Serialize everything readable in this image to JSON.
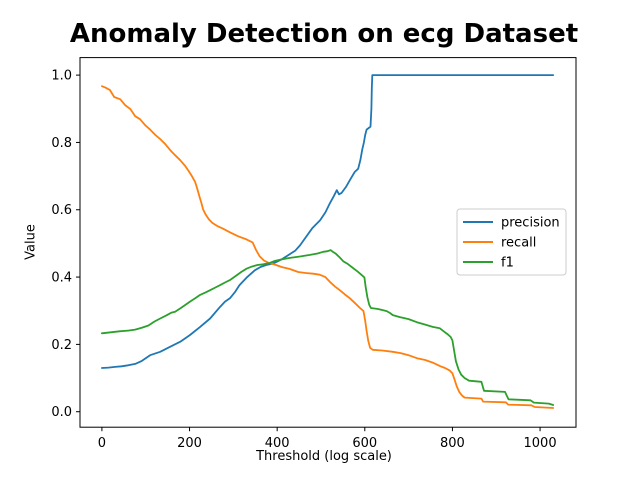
{
  "chart_data": {
    "type": "line",
    "title": "Anomaly Detection on ecg Dataset",
    "xlabel": "Threshold (log scale)",
    "ylabel": "Value",
    "xlim": [
      -50,
      1082
    ],
    "ylim": [
      -0.046,
      1.052
    ],
    "grid": false,
    "background_color": "#ffffff",
    "spine_color": "#000000",
    "xticks": {
      "values": [
        0,
        200,
        400,
        600,
        800,
        1000
      ],
      "labels": [
        "0",
        "200",
        "400",
        "600",
        "800",
        "1000"
      ]
    },
    "yticks": {
      "values": [
        0.0,
        0.2,
        0.4,
        0.6,
        0.8,
        1.0
      ],
      "labels": [
        "0.0",
        "0.2",
        "0.4",
        "0.6",
        "0.8",
        "1.0"
      ]
    },
    "legend": {
      "position": "center-right",
      "border_color": "#cccccc",
      "entries": [
        {
          "label": "precision",
          "color": "#1f77b4"
        },
        {
          "label": "recall",
          "color": "#ff7f0e"
        },
        {
          "label": "f1",
          "color": "#2ca02c"
        }
      ]
    },
    "series": [
      {
        "name": "precision",
        "color": "#1f77b4",
        "points": [
          [
            0,
            0.13
          ],
          [
            15,
            0.131
          ],
          [
            30,
            0.133
          ],
          [
            45,
            0.135
          ],
          [
            60,
            0.138
          ],
          [
            76,
            0.142
          ],
          [
            90,
            0.15
          ],
          [
            110,
            0.168
          ],
          [
            133,
            0.178
          ],
          [
            156,
            0.193
          ],
          [
            179,
            0.208
          ],
          [
            201,
            0.228
          ],
          [
            224,
            0.252
          ],
          [
            247,
            0.277
          ],
          [
            270,
            0.312
          ],
          [
            281,
            0.327
          ],
          [
            292,
            0.337
          ],
          [
            304,
            0.356
          ],
          [
            314,
            0.376
          ],
          [
            330,
            0.398
          ],
          [
            349,
            0.42
          ],
          [
            362,
            0.43
          ],
          [
            375,
            0.436
          ],
          [
            390,
            0.44
          ],
          [
            400,
            0.446
          ],
          [
            412,
            0.454
          ],
          [
            425,
            0.465
          ],
          [
            441,
            0.478
          ],
          [
            452,
            0.494
          ],
          [
            465,
            0.518
          ],
          [
            480,
            0.545
          ],
          [
            498,
            0.569
          ],
          [
            510,
            0.592
          ],
          [
            520,
            0.619
          ],
          [
            529,
            0.64
          ],
          [
            536,
            0.658
          ],
          [
            541,
            0.646
          ],
          [
            547,
            0.65
          ],
          [
            557,
            0.668
          ],
          [
            566,
            0.688
          ],
          [
            577,
            0.712
          ],
          [
            585,
            0.722
          ],
          [
            590,
            0.748
          ],
          [
            594,
            0.778
          ],
          [
            598,
            0.8
          ],
          [
            601,
            0.822
          ],
          [
            604,
            0.838
          ],
          [
            613,
            0.847
          ],
          [
            615,
            0.9
          ],
          [
            616,
            0.96
          ],
          [
            617,
            1.0
          ],
          [
            1030,
            1.0
          ]
        ]
      },
      {
        "name": "recall",
        "color": "#ff7f0e",
        "points": [
          [
            0,
            0.967
          ],
          [
            8,
            0.963
          ],
          [
            18,
            0.956
          ],
          [
            28,
            0.935
          ],
          [
            42,
            0.928
          ],
          [
            53,
            0.911
          ],
          [
            65,
            0.899
          ],
          [
            76,
            0.878
          ],
          [
            87,
            0.869
          ],
          [
            99,
            0.851
          ],
          [
            110,
            0.838
          ],
          [
            122,
            0.822
          ],
          [
            133,
            0.81
          ],
          [
            144,
            0.796
          ],
          [
            156,
            0.777
          ],
          [
            167,
            0.762
          ],
          [
            179,
            0.747
          ],
          [
            190,
            0.73
          ],
          [
            197,
            0.717
          ],
          [
            205,
            0.701
          ],
          [
            213,
            0.682
          ],
          [
            218,
            0.661
          ],
          [
            222,
            0.642
          ],
          [
            227,
            0.62
          ],
          [
            231,
            0.601
          ],
          [
            237,
            0.585
          ],
          [
            244,
            0.572
          ],
          [
            252,
            0.561
          ],
          [
            263,
            0.552
          ],
          [
            276,
            0.544
          ],
          [
            292,
            0.533
          ],
          [
            311,
            0.521
          ],
          [
            330,
            0.512
          ],
          [
            344,
            0.503
          ],
          [
            352,
            0.48
          ],
          [
            360,
            0.462
          ],
          [
            370,
            0.449
          ],
          [
            381,
            0.442
          ],
          [
            395,
            0.437
          ],
          [
            410,
            0.43
          ],
          [
            429,
            0.424
          ],
          [
            448,
            0.415
          ],
          [
            465,
            0.412
          ],
          [
            482,
            0.41
          ],
          [
            497,
            0.407
          ],
          [
            510,
            0.4
          ],
          [
            520,
            0.386
          ],
          [
            531,
            0.373
          ],
          [
            543,
            0.361
          ],
          [
            555,
            0.348
          ],
          [
            566,
            0.337
          ],
          [
            578,
            0.322
          ],
          [
            589,
            0.308
          ],
          [
            597,
            0.299
          ],
          [
            601,
            0.27
          ],
          [
            604,
            0.24
          ],
          [
            608,
            0.21
          ],
          [
            612,
            0.19
          ],
          [
            618,
            0.184
          ],
          [
            640,
            0.182
          ],
          [
            664,
            0.178
          ],
          [
            682,
            0.174
          ],
          [
            700,
            0.168
          ],
          [
            719,
            0.159
          ],
          [
            737,
            0.154
          ],
          [
            755,
            0.146
          ],
          [
            771,
            0.136
          ],
          [
            783,
            0.13
          ],
          [
            794,
            0.122
          ],
          [
            800,
            0.114
          ],
          [
            805,
            0.095
          ],
          [
            810,
            0.075
          ],
          [
            816,
            0.058
          ],
          [
            822,
            0.048
          ],
          [
            828,
            0.042
          ],
          [
            866,
            0.039
          ],
          [
            870,
            0.03
          ],
          [
            922,
            0.028
          ],
          [
            927,
            0.021
          ],
          [
            980,
            0.019
          ],
          [
            988,
            0.014
          ],
          [
            1030,
            0.011
          ]
        ]
      },
      {
        "name": "f1",
        "color": "#2ca02c",
        "points": [
          [
            0,
            0.233
          ],
          [
            20,
            0.236
          ],
          [
            40,
            0.239
          ],
          [
            60,
            0.241
          ],
          [
            76,
            0.244
          ],
          [
            92,
            0.25
          ],
          [
            106,
            0.256
          ],
          [
            120,
            0.268
          ],
          [
            133,
            0.277
          ],
          [
            147,
            0.286
          ],
          [
            158,
            0.294
          ],
          [
            167,
            0.297
          ],
          [
            179,
            0.307
          ],
          [
            190,
            0.317
          ],
          [
            201,
            0.327
          ],
          [
            213,
            0.337
          ],
          [
            224,
            0.347
          ],
          [
            236,
            0.354
          ],
          [
            247,
            0.361
          ],
          [
            259,
            0.369
          ],
          [
            270,
            0.376
          ],
          [
            281,
            0.384
          ],
          [
            292,
            0.391
          ],
          [
            305,
            0.403
          ],
          [
            318,
            0.415
          ],
          [
            330,
            0.425
          ],
          [
            342,
            0.431
          ],
          [
            355,
            0.436
          ],
          [
            368,
            0.438
          ],
          [
            381,
            0.441
          ],
          [
            395,
            0.448
          ],
          [
            412,
            0.453
          ],
          [
            429,
            0.457
          ],
          [
            452,
            0.461
          ],
          [
            475,
            0.466
          ],
          [
            492,
            0.47
          ],
          [
            505,
            0.475
          ],
          [
            515,
            0.477
          ],
          [
            522,
            0.48
          ],
          [
            527,
            0.475
          ],
          [
            534,
            0.469
          ],
          [
            543,
            0.458
          ],
          [
            551,
            0.447
          ],
          [
            561,
            0.439
          ],
          [
            573,
            0.427
          ],
          [
            584,
            0.416
          ],
          [
            593,
            0.406
          ],
          [
            599,
            0.399
          ],
          [
            602,
            0.37
          ],
          [
            606,
            0.34
          ],
          [
            610,
            0.318
          ],
          [
            614,
            0.308
          ],
          [
            630,
            0.305
          ],
          [
            650,
            0.299
          ],
          [
            658,
            0.293
          ],
          [
            664,
            0.287
          ],
          [
            680,
            0.281
          ],
          [
            700,
            0.275
          ],
          [
            719,
            0.266
          ],
          [
            737,
            0.259
          ],
          [
            755,
            0.252
          ],
          [
            771,
            0.248
          ],
          [
            780,
            0.239
          ],
          [
            790,
            0.229
          ],
          [
            796,
            0.222
          ],
          [
            800,
            0.212
          ],
          [
            804,
            0.18
          ],
          [
            808,
            0.15
          ],
          [
            814,
            0.125
          ],
          [
            820,
            0.11
          ],
          [
            828,
            0.1
          ],
          [
            838,
            0.092
          ],
          [
            866,
            0.089
          ],
          [
            872,
            0.062
          ],
          [
            920,
            0.059
          ],
          [
            928,
            0.037
          ],
          [
            978,
            0.034
          ],
          [
            986,
            0.027
          ],
          [
            1020,
            0.024
          ],
          [
            1030,
            0.02
          ]
        ]
      }
    ]
  }
}
